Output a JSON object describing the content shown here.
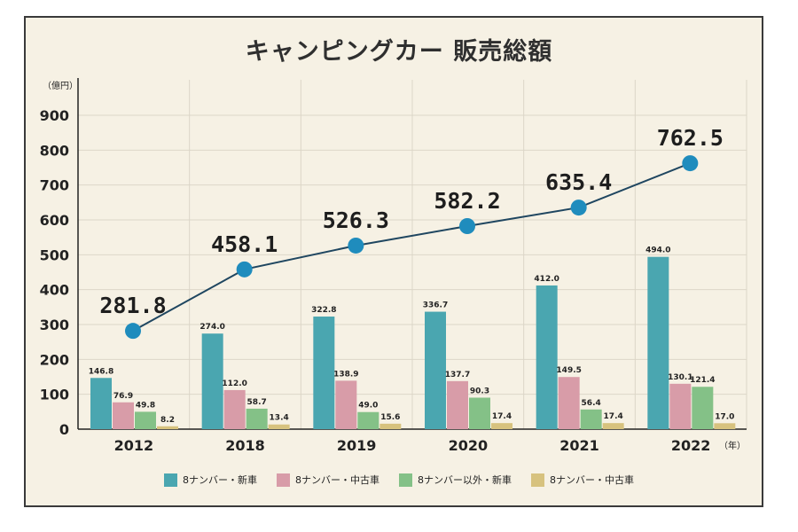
{
  "colors": {
    "series": [
      "#4aa6b0",
      "#d89ca8",
      "#84c187",
      "#d7c27e"
    ],
    "line": "#1f4660",
    "marker": "#1f8cbd",
    "grid": "#dcd6c8"
  },
  "chart_data": {
    "type": "bar",
    "title": "キャンピングカー 販売総額",
    "y_unit": "（億円）",
    "x_unit": "（年）",
    "categories": [
      "2012",
      "2018",
      "2019",
      "2020",
      "2021",
      "2022"
    ],
    "ylim": [
      0,
      900
    ],
    "yticks": [
      0,
      100,
      200,
      300,
      400,
      500,
      600,
      700,
      800,
      900
    ],
    "grid": true,
    "legend_position": "bottom",
    "series": [
      {
        "name": "8ナンバー・新車",
        "values": [
          146.8,
          274.0,
          322.8,
          336.7,
          412.0,
          494.0
        ],
        "labels": [
          "146.8",
          "274.0",
          "322.8",
          "336.7",
          "412.0",
          "494.0"
        ]
      },
      {
        "name": "8ナンバー・中古車",
        "values": [
          76.9,
          112.0,
          138.9,
          137.7,
          149.5,
          130.1
        ],
        "labels": [
          "76.9",
          "112.0",
          "138.9",
          "137.7",
          "149.5",
          "130.1"
        ]
      },
      {
        "name": "8ナンバー以外・新車",
        "values": [
          49.8,
          58.7,
          49.0,
          90.3,
          56.4,
          121.4
        ],
        "labels": [
          "49.8",
          "58.7",
          "49.0",
          "90.3",
          "56.4",
          "121.4"
        ]
      },
      {
        "name": "8ナンバー・中古車",
        "values": [
          8.2,
          13.4,
          15.6,
          17.4,
          17.4,
          17.0
        ],
        "labels": [
          "8.2",
          "13.4",
          "15.6",
          "17.4",
          "17.4",
          "17.0"
        ]
      }
    ],
    "totals": {
      "type": "line",
      "values": [
        281.8,
        458.1,
        526.3,
        582.2,
        635.4,
        762.5
      ],
      "labels": [
        "281.8",
        "458.1",
        "526.3",
        "582.2",
        "635.4",
        "762.5"
      ]
    }
  }
}
